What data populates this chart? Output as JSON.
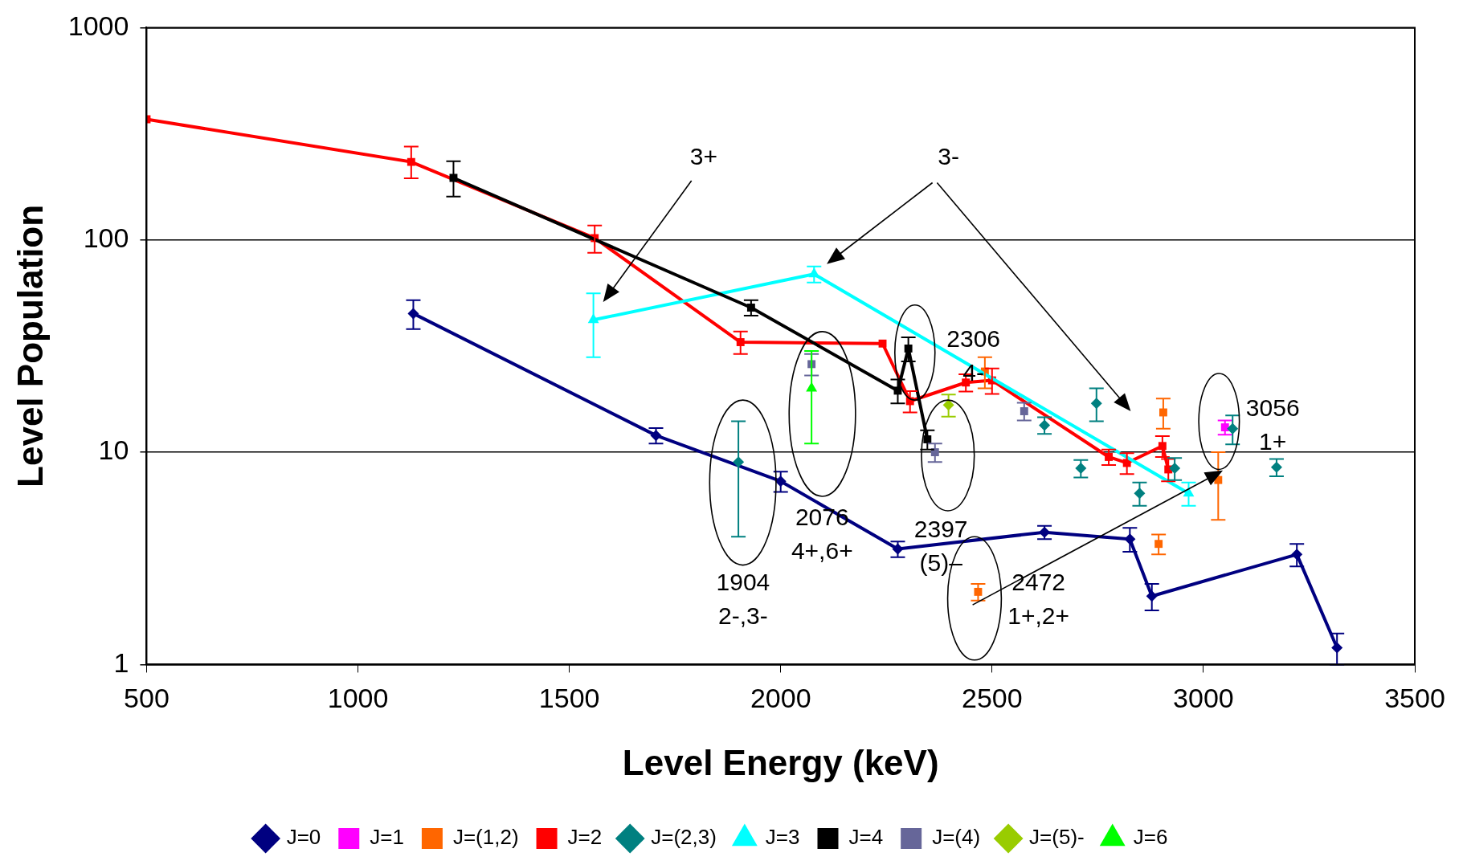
{
  "chart_data": {
    "type": "line",
    "xlabel": "Level Energy (keV)",
    "ylabel": "Level Population",
    "xlim": [
      500,
      3500
    ],
    "xticks": [
      500,
      1000,
      1500,
      2000,
      2500,
      3000,
      3500
    ],
    "ylim": [
      1,
      1000
    ],
    "yticks": [
      1,
      10,
      100,
      1000
    ],
    "log": "y",
    "grid": "y",
    "legend": "bottom",
    "series": [
      {
        "name": "J=0",
        "marker": "diamond",
        "color": "#000080",
        "x": [
          1131,
          1705,
          2000,
          2277,
          2624,
          2826,
          2878,
          3221,
          3316
        ],
        "values": [
          45,
          12,
          7.3,
          3.5,
          4.2,
          3.9,
          2.1,
          3.3,
          1.2
        ],
        "errors": [
          [
            38,
            52
          ],
          1,
          0.8,
          0.3,
          0.3,
          0.5,
          0.3,
          0.4,
          0.2
        ]
      },
      {
        "name": "J=1",
        "type": "scatter",
        "marker": "square",
        "color": "#ff00ff",
        "x": [
          3051
        ],
        "values": [
          13.1
        ],
        "errors": [
          1
        ]
      },
      {
        "name": "J=(1,2)",
        "type": "scatter",
        "marker": "square",
        "color": "#ff6600",
        "x": [
          2467,
          2483,
          2894,
          2905,
          3035
        ],
        "values": [
          2.2,
          24,
          3.7,
          15.4,
          7.4
        ],
        "errors": [
          0.2,
          4,
          0.4,
          2.5,
          [
            4.8,
            10
          ]
        ]
      },
      {
        "name": "J=2",
        "marker": "square",
        "color": "#ff0000",
        "x": [
          500,
          1126,
          1560,
          1905,
          2241,
          2306,
          2438,
          2500,
          2776,
          2819,
          2903,
          2917
        ],
        "values": [
          370,
          233,
          102,
          33,
          32.5,
          17.4,
          21.3,
          21.8,
          9.5,
          8.9,
          10.7,
          8.3
        ],
        "errors": [
          null,
          [
            195,
            275
          ],
          15,
          4,
          null,
          2,
          2,
          3,
          0.8,
          1,
          1.2,
          1
        ]
      },
      {
        "name": "J=(2,3)",
        "type": "scatter",
        "marker": "diamond",
        "color": "#008080",
        "x": [
          1900,
          2624,
          2710,
          2747,
          2849,
          2932,
          3069,
          3173
        ],
        "values": [
          9,
          13.4,
          8.4,
          17,
          6.4,
          8.4,
          12.9,
          8.5
        ],
        "errors": [
          [
            4,
            14
          ],
          1.2,
          0.8,
          [
            14,
            20
          ],
          0.8,
          1,
          2,
          0.8
        ]
      },
      {
        "name": "J=3",
        "marker": "triangle",
        "color": "#00ffff",
        "x": [
          1557,
          2079,
          2965
        ],
        "values": [
          42,
          69,
          6.4
        ],
        "errors": [
          [
            28,
            56
          ],
          6,
          0.8
        ]
      },
      {
        "name": "J=4",
        "marker": "square",
        "color": "#000000",
        "x": [
          1226,
          1930,
          2277,
          2302,
          2347
        ],
        "values": [
          196,
          48,
          19.5,
          30.8,
          11.5
        ],
        "errors": [
          [
            160,
            235
          ],
          4,
          2.5,
          4,
          1.2
        ]
      },
      {
        "name": "J=(4)",
        "type": "scatter",
        "marker": "square",
        "color": "#666699",
        "x": [
          2073,
          2365,
          2576
        ],
        "values": [
          26,
          10,
          15.6
        ],
        "errors": [
          3,
          1,
          1.5
        ]
      },
      {
        "name": "J=(5)-",
        "type": "scatter",
        "marker": "diamond",
        "color": "#99cc00",
        "x": [
          2397
        ],
        "values": [
          16.7
        ],
        "errors": [
          2
        ]
      },
      {
        "name": "J=6",
        "type": "scatter",
        "marker": "triangle",
        "color": "#00ff00",
        "x": [
          2073
        ],
        "values": [
          20
        ],
        "errors": [
          [
            11,
            30
          ]
        ]
      }
    ],
    "annotations": [
      "3+",
      "3-",
      "2306\n4-",
      "1904\n2-,3-",
      "2076\n4+,6+",
      "2397\n(5)–",
      "2472\n1+,2+",
      "3056\n1+"
    ]
  }
}
